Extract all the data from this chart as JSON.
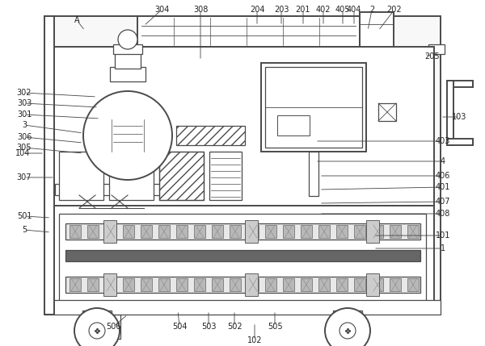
{
  "bg_color": "#ffffff",
  "line_color": "#4a4a4a",
  "lw": 0.9,
  "lw2": 1.4,
  "fig_width": 6.0,
  "fig_height": 4.29,
  "dpi": 100
}
